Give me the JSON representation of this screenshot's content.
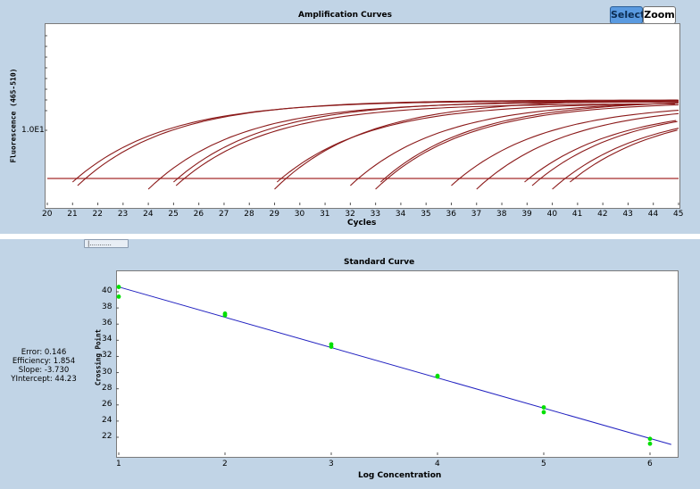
{
  "buttons": {
    "select": "Select",
    "zoom": "Zoom"
  },
  "colors": {
    "panel": "#c1d4e6",
    "curve": "#8b1a1a",
    "threshold": "#a52a2a",
    "fit_line": "#2020c0",
    "points": "#00e000"
  },
  "amplification": {
    "title": "Amplification Curves",
    "xlabel": "Cycles",
    "ylabel": "Fluorescence (465-510)",
    "y_tick": "1.0E1",
    "x_ticks": [
      "20",
      "21",
      "22",
      "23",
      "24",
      "25",
      "26",
      "27",
      "28",
      "29",
      "30",
      "31",
      "32",
      "33",
      "34",
      "35",
      "36",
      "37",
      "38",
      "39",
      "40",
      "41",
      "42",
      "43",
      "44",
      "45"
    ],
    "threshold_note": "threshold line",
    "curve_starts": [
      21.0,
      21.2,
      24.0,
      25.0,
      25.1,
      29.0,
      29.1,
      32.0,
      33.0,
      33.2,
      36.0,
      37.0,
      38.9,
      39.2,
      40.0,
      40.7
    ]
  },
  "standard": {
    "title": "Standard Curve",
    "xlabel": "Log Concentration",
    "ylabel": "Crossing Point",
    "stats": [
      "Error: 0.146",
      "Efficiency: 1.854",
      "Slope: -3.730",
      "YIntercept: 44.23"
    ],
    "splitter": "|..........."
  },
  "chart_data": [
    {
      "type": "line",
      "title": "Amplification Curves",
      "xlabel": "Cycles",
      "ylabel": "Fluorescence (465-510)",
      "xlim": [
        20,
        45
      ],
      "y_scale": "log",
      "y_tick_labels": [
        "1.0E1"
      ],
      "series_count": 16,
      "threshold": true
    },
    {
      "type": "scatter",
      "title": "Standard Curve",
      "xlabel": "Log Concentration",
      "ylabel": "Crossing Point",
      "x_ticks": [
        1,
        2,
        3,
        4,
        5,
        6
      ],
      "y_ticks": [
        22,
        24,
        26,
        28,
        30,
        32,
        34,
        36,
        38,
        40
      ],
      "xlim": [
        1,
        6.2
      ],
      "ylim": [
        20,
        42
      ],
      "points": [
        {
          "x": 1,
          "y": 40.6
        },
        {
          "x": 1,
          "y": 39.4
        },
        {
          "x": 2,
          "y": 37.3
        },
        {
          "x": 2,
          "y": 37.1
        },
        {
          "x": 3,
          "y": 33.5
        },
        {
          "x": 3,
          "y": 33.2
        },
        {
          "x": 4,
          "y": 29.6
        },
        {
          "x": 4,
          "y": 29.5
        },
        {
          "x": 5,
          "y": 25.7
        },
        {
          "x": 5,
          "y": 25.1
        },
        {
          "x": 6,
          "y": 21.8
        },
        {
          "x": 6,
          "y": 21.2
        }
      ],
      "fit": {
        "slope": -3.73,
        "intercept": 44.23
      }
    }
  ]
}
